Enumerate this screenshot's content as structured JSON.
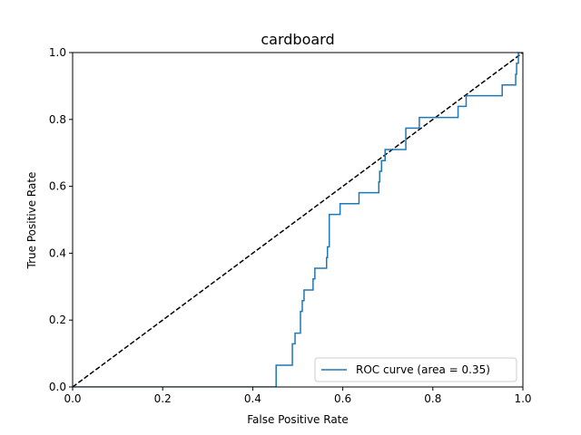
{
  "chart_data": {
    "type": "line",
    "title": "cardboard",
    "xlabel": "False Positive Rate",
    "ylabel": "True Positive Rate",
    "xlim": [
      0.0,
      1.0
    ],
    "ylim": [
      0.0,
      1.0
    ],
    "x_ticks": [
      "0.0",
      "0.2",
      "0.4",
      "0.6",
      "0.8",
      "1.0"
    ],
    "y_ticks": [
      "0.0",
      "0.2",
      "0.4",
      "0.6",
      "0.8",
      "1.0"
    ],
    "grid": false,
    "legend_position": "lower-right",
    "series": [
      {
        "name": "ROC curve (area = 0.35)",
        "color": "#1f77b4",
        "style": "solid",
        "points": [
          [
            0.0,
            0.0
          ],
          [
            0.452,
            0.0
          ],
          [
            0.452,
            0.065
          ],
          [
            0.488,
            0.065
          ],
          [
            0.488,
            0.129
          ],
          [
            0.494,
            0.129
          ],
          [
            0.494,
            0.161
          ],
          [
            0.506,
            0.161
          ],
          [
            0.506,
            0.226
          ],
          [
            0.51,
            0.226
          ],
          [
            0.51,
            0.258
          ],
          [
            0.514,
            0.258
          ],
          [
            0.514,
            0.29
          ],
          [
            0.534,
            0.29
          ],
          [
            0.534,
            0.323
          ],
          [
            0.538,
            0.323
          ],
          [
            0.538,
            0.355
          ],
          [
            0.564,
            0.355
          ],
          [
            0.564,
            0.387
          ],
          [
            0.566,
            0.387
          ],
          [
            0.566,
            0.419
          ],
          [
            0.57,
            0.419
          ],
          [
            0.57,
            0.516
          ],
          [
            0.594,
            0.516
          ],
          [
            0.594,
            0.548
          ],
          [
            0.636,
            0.548
          ],
          [
            0.636,
            0.581
          ],
          [
            0.68,
            0.581
          ],
          [
            0.68,
            0.613
          ],
          [
            0.682,
            0.613
          ],
          [
            0.682,
            0.645
          ],
          [
            0.686,
            0.645
          ],
          [
            0.686,
            0.677
          ],
          [
            0.694,
            0.677
          ],
          [
            0.694,
            0.71
          ],
          [
            0.74,
            0.71
          ],
          [
            0.74,
            0.774
          ],
          [
            0.77,
            0.774
          ],
          [
            0.77,
            0.806
          ],
          [
            0.856,
            0.806
          ],
          [
            0.856,
            0.839
          ],
          [
            0.874,
            0.839
          ],
          [
            0.874,
            0.871
          ],
          [
            0.954,
            0.871
          ],
          [
            0.954,
            0.903
          ],
          [
            0.984,
            0.903
          ],
          [
            0.984,
            0.935
          ],
          [
            0.986,
            0.935
          ],
          [
            0.986,
            0.968
          ],
          [
            0.99,
            0.968
          ],
          [
            0.99,
            1.0
          ],
          [
            1.0,
            1.0
          ]
        ]
      },
      {
        "name": "",
        "color": "#000000",
        "style": "dashed",
        "points": [
          [
            0.0,
            0.0
          ],
          [
            1.0,
            1.0
          ]
        ]
      }
    ]
  }
}
